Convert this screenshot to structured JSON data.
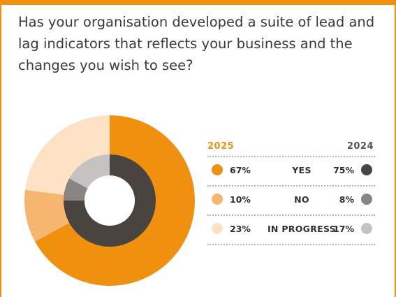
{
  "question": "Has your organisation developed a suite of lead and lag indicators that reflects your business and the changes you wish to see?",
  "colors": {
    "accent": "#f0900f",
    "outer": [
      "#f0900f",
      "#f5b670",
      "#fde2c6"
    ],
    "inner": [
      "#4a4440",
      "#8a8582",
      "#c5c3c2"
    ]
  },
  "chart_data": {
    "type": "pie",
    "subtype": "double-donut",
    "categories": [
      "YES",
      "NO",
      "IN PROGRESS"
    ],
    "series": [
      {
        "name": "2025",
        "ring": "outer",
        "values": [
          67,
          10,
          23
        ],
        "labels": [
          "67%",
          "10%",
          "23%"
        ]
      },
      {
        "name": "2024",
        "ring": "inner",
        "values": [
          75,
          8,
          17
        ],
        "labels": [
          "75%",
          "8%",
          "17%"
        ]
      }
    ],
    "legend": {
      "placement": "right"
    }
  },
  "legend": {
    "year_left": "2025",
    "year_right": "2024",
    "rows": [
      {
        "left": "67%",
        "label": "YES",
        "right": "75%"
      },
      {
        "left": "10%",
        "label": "NO",
        "right": "8%"
      },
      {
        "left": "23%",
        "label": "IN PROGRESS",
        "right": "17%"
      }
    ]
  }
}
